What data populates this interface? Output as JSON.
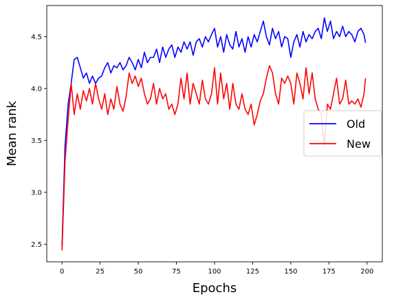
{
  "chart_data": {
    "type": "line",
    "title": "",
    "xlabel": "Epochs",
    "ylabel": "Mean rank",
    "xlim": [
      -10,
      210
    ],
    "ylim": [
      2.33,
      4.8
    ],
    "xticks": [
      0,
      25,
      50,
      75,
      100,
      125,
      150,
      175,
      200
    ],
    "xtick_labels": [
      "0",
      "25",
      "50",
      "75",
      "100",
      "125",
      "150",
      "175",
      "200"
    ],
    "yticks": [
      2.5,
      3.0,
      3.5,
      4.0,
      4.5
    ],
    "ytick_labels": [
      "2.5",
      "3.0",
      "3.5",
      "4.0",
      "4.5"
    ],
    "grid": false,
    "legend_position": "center-right",
    "series": [
      {
        "name": "Old",
        "color": "#0000ff",
        "x": [
          0,
          2,
          4,
          6,
          8,
          10,
          12,
          14,
          16,
          18,
          20,
          22,
          24,
          26,
          28,
          30,
          32,
          34,
          36,
          38,
          40,
          42,
          44,
          46,
          48,
          50,
          52,
          54,
          56,
          58,
          60,
          62,
          64,
          66,
          68,
          70,
          72,
          74,
          76,
          78,
          80,
          82,
          84,
          86,
          88,
          90,
          92,
          94,
          96,
          98,
          100,
          102,
          104,
          106,
          108,
          110,
          112,
          114,
          116,
          118,
          120,
          122,
          124,
          126,
          128,
          130,
          132,
          134,
          136,
          138,
          140,
          142,
          144,
          146,
          148,
          150,
          152,
          154,
          156,
          158,
          160,
          162,
          164,
          166,
          168,
          170,
          172,
          174,
          176,
          178,
          180,
          182,
          184,
          186,
          188,
          190,
          192,
          194,
          196,
          198,
          199
        ],
        "y": [
          2.48,
          3.45,
          3.85,
          4.05,
          4.28,
          4.3,
          4.2,
          4.1,
          4.15,
          4.05,
          4.12,
          4.05,
          4.1,
          4.12,
          4.2,
          4.25,
          4.15,
          4.22,
          4.2,
          4.25,
          4.18,
          4.22,
          4.3,
          4.25,
          4.18,
          4.28,
          4.2,
          4.35,
          4.25,
          4.3,
          4.3,
          4.38,
          4.25,
          4.4,
          4.3,
          4.38,
          4.42,
          4.3,
          4.4,
          4.35,
          4.45,
          4.38,
          4.45,
          4.32,
          4.45,
          4.48,
          4.4,
          4.5,
          4.45,
          4.52,
          4.58,
          4.4,
          4.5,
          4.35,
          4.52,
          4.42,
          4.38,
          4.55,
          4.4,
          4.48,
          4.35,
          4.5,
          4.4,
          4.52,
          4.45,
          4.55,
          4.65,
          4.5,
          4.42,
          4.58,
          4.48,
          4.55,
          4.4,
          4.5,
          4.48,
          4.3,
          4.45,
          4.52,
          4.4,
          4.55,
          4.45,
          4.52,
          4.48,
          4.55,
          4.58,
          4.48,
          4.68,
          4.55,
          4.65,
          4.48,
          4.55,
          4.5,
          4.6,
          4.5,
          4.55,
          4.52,
          4.45,
          4.55,
          4.58,
          4.52,
          4.44
        ]
      },
      {
        "name": "New",
        "color": "#ff0000",
        "x": [
          0,
          2,
          4,
          6,
          8,
          10,
          12,
          14,
          16,
          18,
          20,
          22,
          24,
          26,
          28,
          30,
          32,
          34,
          36,
          38,
          40,
          42,
          44,
          46,
          48,
          50,
          52,
          54,
          56,
          58,
          60,
          62,
          64,
          66,
          68,
          70,
          72,
          74,
          76,
          78,
          80,
          82,
          84,
          86,
          88,
          90,
          92,
          94,
          96,
          98,
          100,
          102,
          104,
          106,
          108,
          110,
          112,
          114,
          116,
          118,
          120,
          122,
          124,
          126,
          128,
          130,
          132,
          134,
          136,
          138,
          140,
          142,
          144,
          146,
          148,
          150,
          152,
          154,
          156,
          158,
          160,
          162,
          164,
          166,
          168,
          170,
          172,
          174,
          176,
          178,
          180,
          182,
          184,
          186,
          188,
          190,
          192,
          194,
          196,
          198,
          199
        ],
        "y": [
          2.44,
          3.3,
          3.7,
          4.05,
          3.75,
          3.95,
          3.8,
          3.98,
          3.88,
          4.0,
          3.85,
          4.05,
          3.9,
          3.8,
          3.95,
          3.75,
          3.9,
          3.8,
          4.02,
          3.85,
          3.78,
          3.92,
          4.15,
          4.05,
          4.12,
          4.02,
          4.1,
          3.95,
          3.85,
          3.9,
          4.05,
          3.85,
          4.0,
          3.9,
          3.95,
          3.8,
          3.85,
          3.75,
          3.85,
          4.1,
          3.9,
          4.15,
          3.85,
          4.05,
          3.95,
          3.85,
          4.08,
          3.9,
          3.85,
          3.95,
          4.2,
          3.85,
          4.15,
          3.9,
          4.05,
          3.8,
          4.05,
          3.85,
          3.8,
          3.95,
          3.8,
          3.75,
          3.85,
          3.65,
          3.75,
          3.88,
          3.95,
          4.1,
          4.22,
          4.15,
          3.95,
          3.85,
          4.1,
          4.05,
          4.12,
          4.05,
          3.85,
          4.15,
          4.05,
          3.9,
          4.2,
          3.95,
          4.15,
          3.9,
          3.8,
          3.75,
          3.45,
          3.85,
          3.8,
          3.95,
          4.1,
          3.85,
          3.9,
          4.08,
          3.85,
          3.88,
          3.85,
          3.9,
          3.82,
          3.95,
          4.1
        ]
      }
    ]
  }
}
